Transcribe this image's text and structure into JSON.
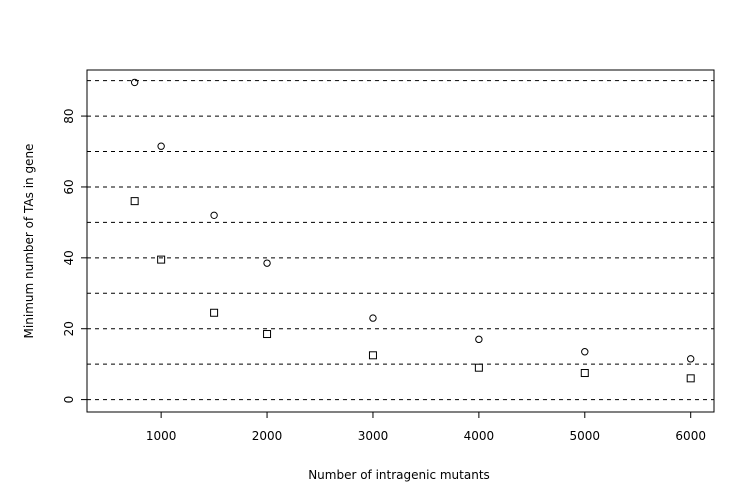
{
  "chart_data": {
    "type": "scatter",
    "title": "",
    "xlabel": "Number of intragenic mutants",
    "ylabel": "Minimum number of TAs in gene",
    "xlim": [
      300,
      6220
    ],
    "ylim": [
      -3.5,
      93
    ],
    "x_ticks": [
      1000,
      2000,
      3000,
      4000,
      5000,
      6000
    ],
    "y_ticks": [
      0,
      20,
      40,
      60,
      80
    ],
    "grid": "horizontal dashed lines every 10 units",
    "grid_lines": [
      0,
      10,
      20,
      30,
      40,
      50,
      60,
      70,
      80,
      90
    ],
    "legend": "none",
    "series": [
      {
        "marker": "circle",
        "points": [
          {
            "x": 750,
            "y": 89.5
          },
          {
            "x": 1000,
            "y": 71.5
          },
          {
            "x": 1500,
            "y": 52
          },
          {
            "x": 2000,
            "y": 38.5
          },
          {
            "x": 3000,
            "y": 23
          },
          {
            "x": 4000,
            "y": 17
          },
          {
            "x": 5000,
            "y": 13.5
          },
          {
            "x": 6000,
            "y": 11.5
          }
        ]
      },
      {
        "marker": "square",
        "points": [
          {
            "x": 750,
            "y": 56
          },
          {
            "x": 1000,
            "y": 39.5
          },
          {
            "x": 1500,
            "y": 24.5
          },
          {
            "x": 2000,
            "y": 18.5
          },
          {
            "x": 3000,
            "y": 12.5
          },
          {
            "x": 4000,
            "y": 9
          },
          {
            "x": 5000,
            "y": 7.5
          },
          {
            "x": 6000,
            "y": 6
          }
        ]
      }
    ]
  }
}
